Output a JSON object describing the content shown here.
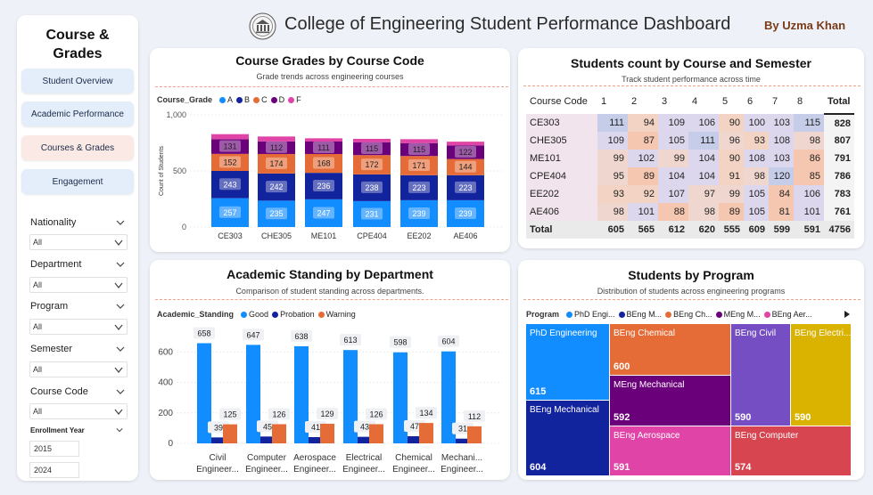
{
  "header": {
    "title": "College of Engineering Student Performance Dashboard",
    "byline": "By Uzma Khan"
  },
  "sidebar": {
    "title": "Course & Grades",
    "nav": [
      "Student Overview",
      "Academic Performance",
      "Courses & Grades",
      "Engagement"
    ],
    "filters": [
      {
        "label": "Nationality",
        "value": "All"
      },
      {
        "label": "Department",
        "value": "All"
      },
      {
        "label": "Program",
        "value": "All"
      },
      {
        "label": "Semester",
        "value": "All"
      },
      {
        "label": "Course Code",
        "value": "All"
      }
    ],
    "year": {
      "label": "Enrollment Year",
      "from": "2015",
      "to": "2024"
    }
  },
  "grades_panel": {
    "title": "Course Grades by Course Code",
    "subtitle": "Grade trends across engineering courses",
    "legend_title": "Course_Grade",
    "ylabel": "Count of Students",
    "yticks": [
      "0",
      "500",
      "1,000"
    ]
  },
  "matrix_panel": {
    "title": "Students count by Course and Semester",
    "subtitle": "Track student performance across time",
    "header": [
      "Course Code",
      "1",
      "2",
      "3",
      "4",
      "5",
      "6",
      "7",
      "8",
      "Total"
    ],
    "rows": [
      {
        "course": "CE303",
        "values": [
          "111",
          "94",
          "109",
          "106",
          "90",
          "100",
          "103",
          "115"
        ],
        "total": "828"
      },
      {
        "course": "CHE305",
        "values": [
          "109",
          "87",
          "105",
          "111",
          "96",
          "93",
          "108",
          "98"
        ],
        "total": "807"
      },
      {
        "course": "ME101",
        "values": [
          "99",
          "102",
          "99",
          "104",
          "90",
          "108",
          "103",
          "86"
        ],
        "total": "791"
      },
      {
        "course": "CPE404",
        "values": [
          "95",
          "89",
          "104",
          "104",
          "91",
          "98",
          "120",
          "85"
        ],
        "total": "786"
      },
      {
        "course": "EE202",
        "values": [
          "93",
          "92",
          "107",
          "97",
          "99",
          "105",
          "84",
          "106"
        ],
        "total": "783"
      },
      {
        "course": "AE406",
        "values": [
          "98",
          "101",
          "88",
          "98",
          "89",
          "105",
          "81",
          "101"
        ],
        "total": "761"
      }
    ],
    "total_row": {
      "label": "Total",
      "values": [
        "605",
        "565",
        "612",
        "620",
        "555",
        "609",
        "599",
        "591"
      ],
      "total": "4756"
    }
  },
  "standing_panel": {
    "title": "Academic Standing by Department",
    "subtitle": "Comparison of student standing across departments.",
    "legend_title": "Academic_Standing",
    "yticks": [
      "0",
      "200",
      "400",
      "600"
    ]
  },
  "program_panel": {
    "title": "Students by Program",
    "subtitle": "Distribution of students across engineering programs",
    "legend_title": "Program",
    "legend_items": [
      "PhD Engi...",
      "BEng M...",
      "BEng Ch...",
      "MEng M...",
      "BEng Aer..."
    ],
    "items": [
      {
        "name": "PhD Engineering",
        "value": "615",
        "color": "#118dff"
      },
      {
        "name": "BEng Mechanical",
        "value": "604",
        "color": "#12239e"
      },
      {
        "name": "BEng Chemical",
        "value": "600",
        "color": "#e66c37"
      },
      {
        "name": "MEng Mechanical",
        "value": "592",
        "color": "#6b007b"
      },
      {
        "name": "BEng Aerospace",
        "value": "591",
        "color": "#e044a7"
      },
      {
        "name": "BEng Civil",
        "value": "590",
        "color": "#744ec2"
      },
      {
        "name": "BEng Electri...",
        "value": "590",
        "color": "#d9b300"
      },
      {
        "name": "BEng Computer",
        "value": "574",
        "color": "#d64550"
      }
    ]
  },
  "colors": {
    "A": "#118dff",
    "B": "#12239e",
    "C": "#e66c37",
    "D": "#6b007b",
    "F": "#e044a7",
    "good": "#118dff",
    "probation": "#12239e",
    "warning": "#e66c37"
  },
  "chart_data": [
    {
      "type": "bar",
      "stacked": true,
      "title": "Course Grades by Course Code",
      "ylabel": "Count of Students",
      "ylim": [
        0,
        1000
      ],
      "categories": [
        "CE303",
        "CHE305",
        "ME101",
        "CPE404",
        "EE202",
        "AE406"
      ],
      "series": [
        {
          "name": "A",
          "values": [
            257,
            235,
            247,
            231,
            239,
            239
          ]
        },
        {
          "name": "B",
          "values": [
            243,
            242,
            236,
            238,
            223,
            223
          ]
        },
        {
          "name": "C",
          "values": [
            152,
            174,
            168,
            172,
            171,
            144
          ]
        },
        {
          "name": "D",
          "values": [
            131,
            112,
            111,
            115,
            115,
            122
          ]
        },
        {
          "name": "F",
          "values": [
            45,
            44,
            29,
            30,
            35,
            33
          ]
        }
      ],
      "legend": "top-left"
    },
    {
      "type": "bar",
      "title": "Academic Standing by Department",
      "ylim": [
        0,
        700
      ],
      "categories": [
        "Civil Engineer...",
        "Computer Engineer...",
        "Aerospace Engineer...",
        "Electrical Engineer...",
        "Chemical Engineer...",
        "Mechani... Engineer..."
      ],
      "series": [
        {
          "name": "Good",
          "values": [
            658,
            647,
            638,
            613,
            598,
            604
          ]
        },
        {
          "name": "Probation",
          "values": [
            39,
            45,
            41,
            43,
            47,
            31
          ]
        },
        {
          "name": "Warning",
          "values": [
            125,
            126,
            129,
            126,
            134,
            112
          ]
        }
      ],
      "legend": "top-left"
    }
  ]
}
